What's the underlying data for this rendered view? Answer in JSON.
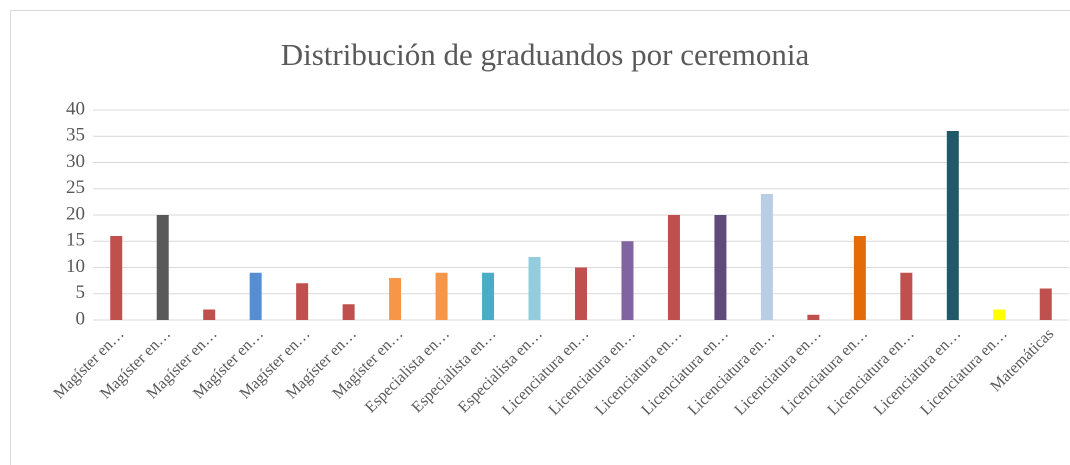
{
  "chart_data": {
    "type": "bar",
    "title": "Distribución de graduandos por ceremonia",
    "categories": [
      "Magíster en…",
      "Magíster en…",
      "Magíster en…",
      "Magíster en…",
      "Magíster en…",
      "Magíster en…",
      "Magíster en…",
      "Especialista en…",
      "Especialista en…",
      "Especialista en…",
      "Licenciatura en…",
      "Licenciatura en…",
      "Licenciatura en…",
      "Licenciatura en…",
      "Licenciatura en…",
      "Licenciatura en…",
      "Licenciatura en…",
      "Licenciatura en…",
      "Licenciatura en…",
      "Licenciatura en…",
      "Matemáticas"
    ],
    "values": [
      16,
      20,
      2,
      9,
      7,
      3,
      8,
      9,
      9,
      12,
      10,
      15,
      20,
      20,
      24,
      1,
      16,
      9,
      36,
      2,
      6
    ],
    "colors": [
      "#c0504d",
      "#595959",
      "#c0504d",
      "#558ed5",
      "#c0504d",
      "#c0504d",
      "#f79646",
      "#f79646",
      "#4bacc6",
      "#93cddd",
      "#c0504d",
      "#8064a2",
      "#c0504d",
      "#604a7b",
      "#b9cde5",
      "#c0504d",
      "#e36c09",
      "#c0504d",
      "#215968",
      "#ffff00",
      "#c0504d"
    ],
    "ylim": [
      0,
      40
    ],
    "yticks": [
      0,
      5,
      10,
      15,
      20,
      25,
      30,
      35,
      40
    ],
    "grid": true
  }
}
